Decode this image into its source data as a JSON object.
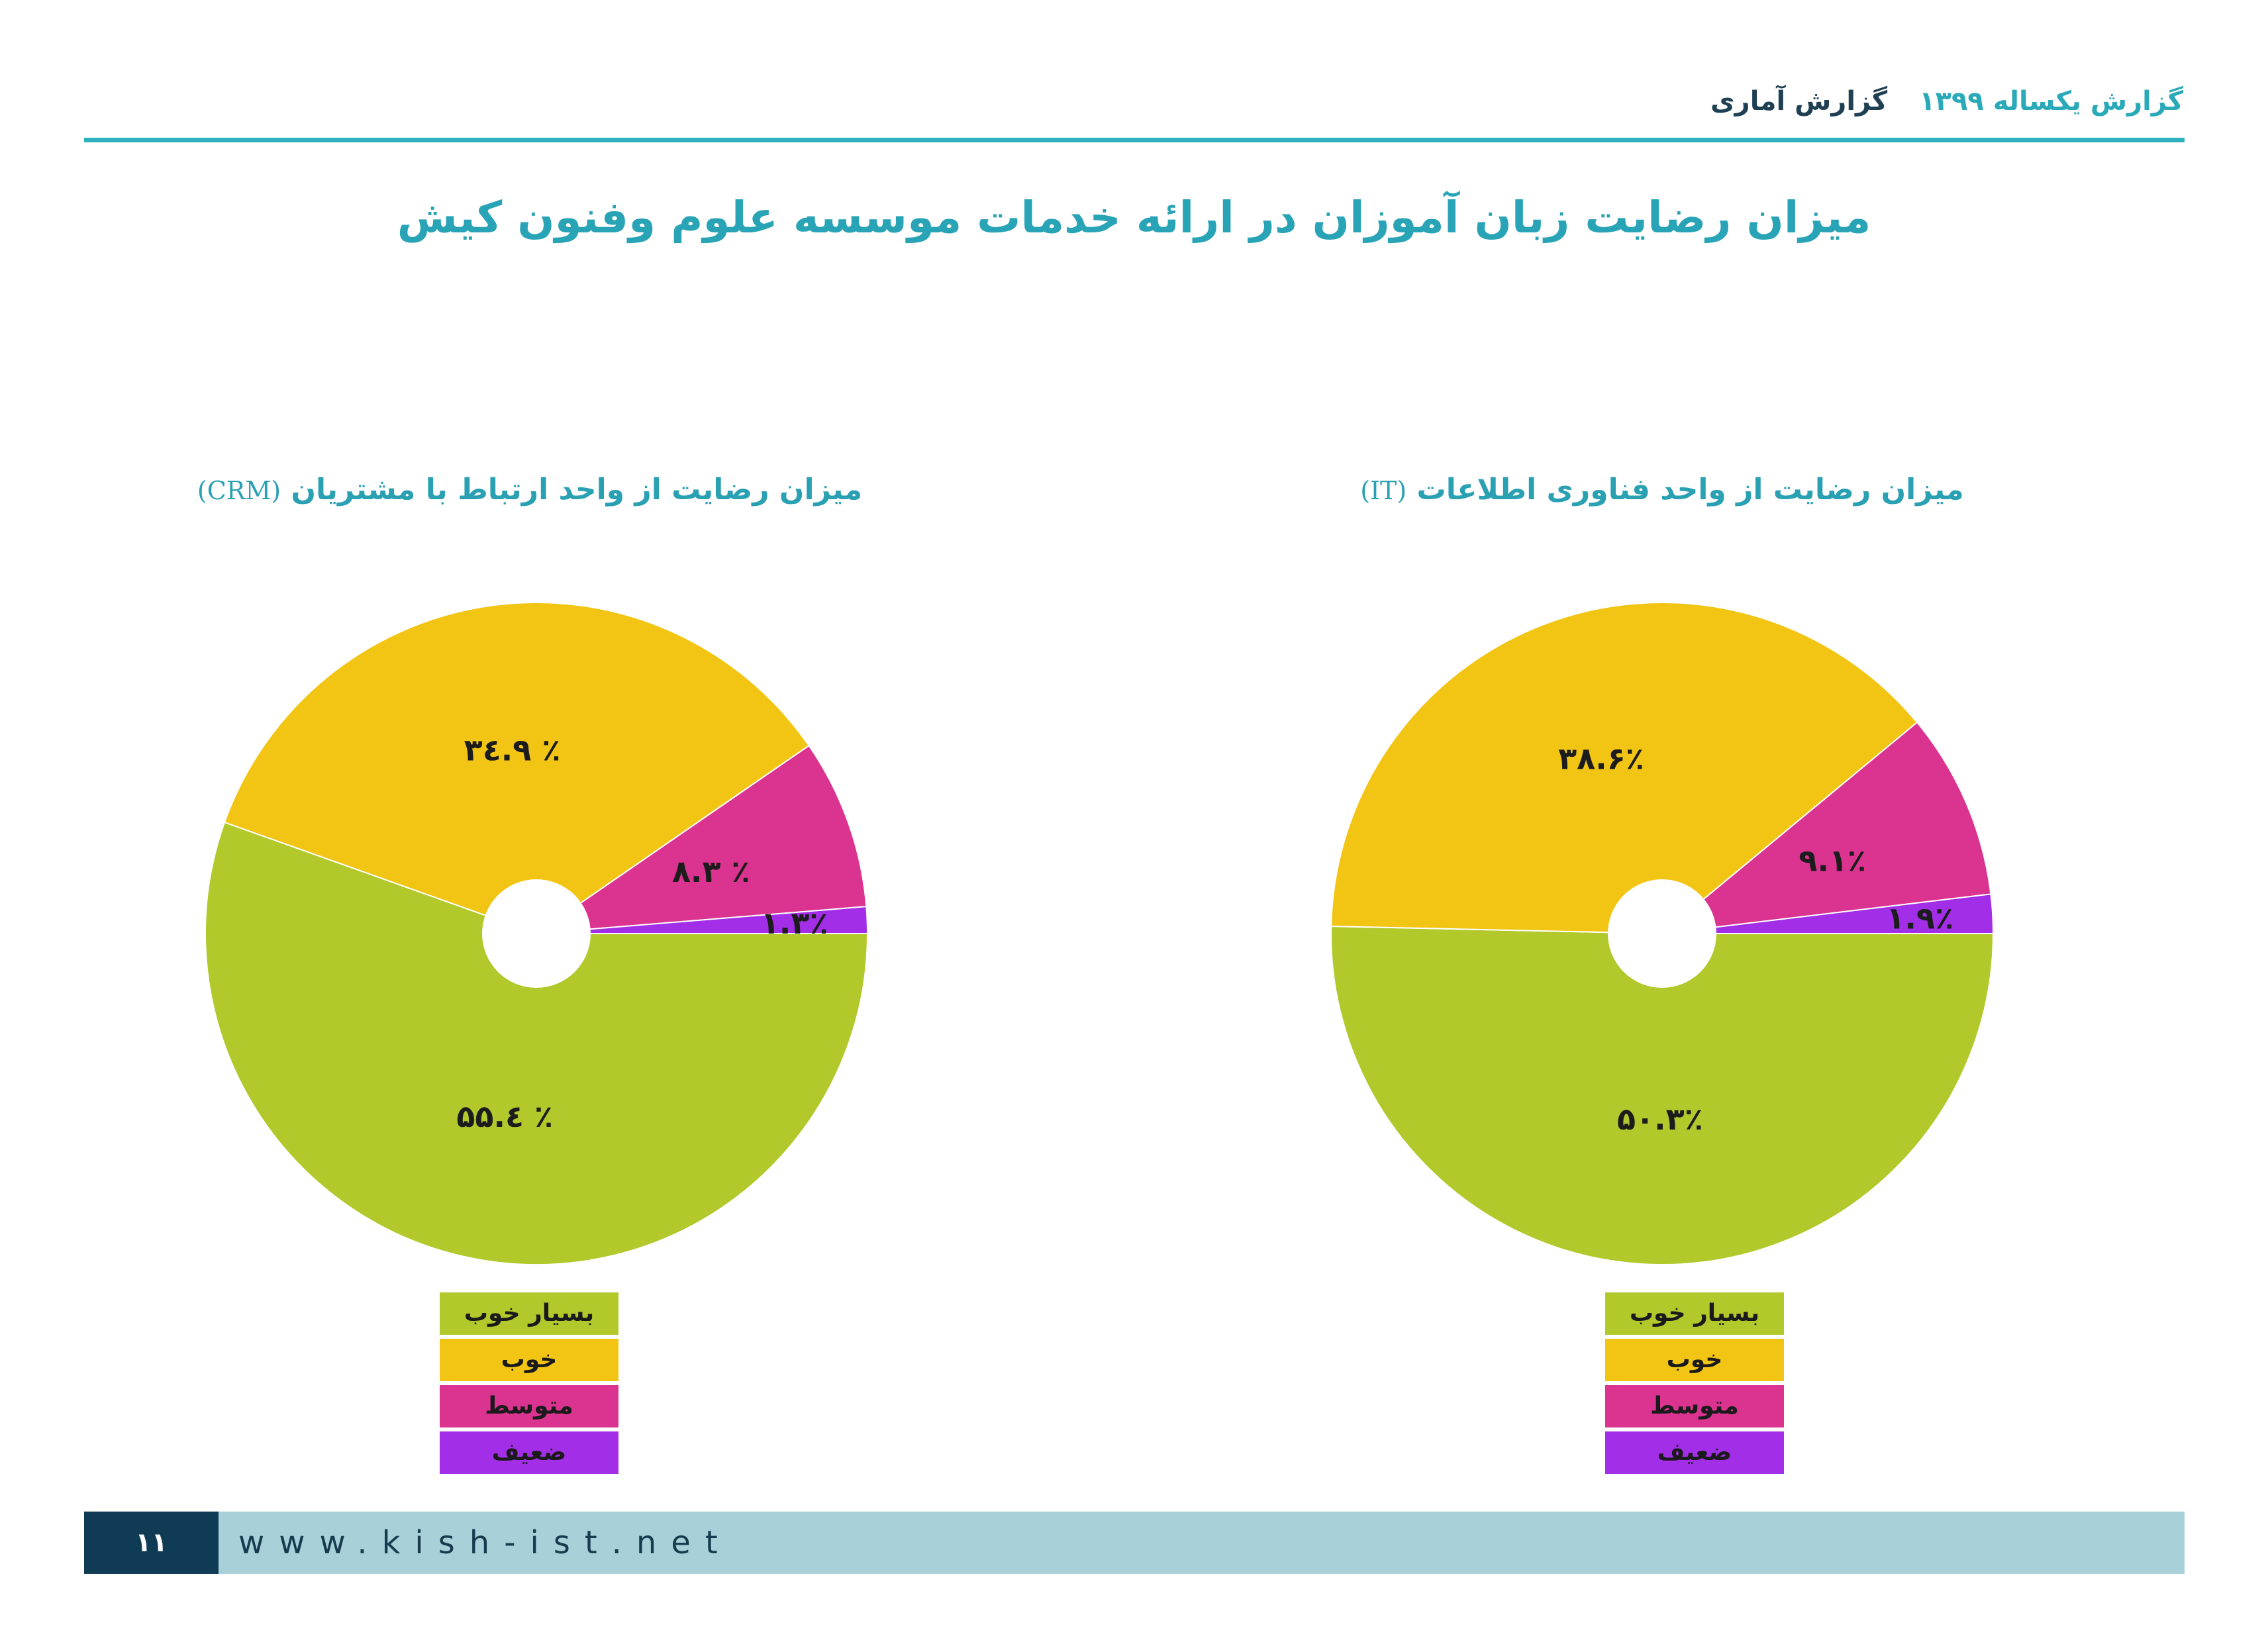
{
  "header": {
    "report_label": "گزارش یکساله ۱۳۹۹",
    "section_label": "گزارش آماری"
  },
  "main_title": "میزان رضایت زبان آموزان در ارائه خدمات  موسسه علوم وفنون کیش",
  "footer": {
    "page_number": "۱۱",
    "url": "www.kish-ist.net"
  },
  "colors": {
    "very_good": "#b2c82b",
    "good": "#f2c515",
    "medium": "#da3390",
    "weak": "#a22ee8"
  },
  "chart_data": [
    {
      "type": "pie",
      "title": "میزان رضایت از واحد ارتباط با مشتریان",
      "title_abbr": "(CRM)",
      "categories": [
        "بسیار خوب",
        "خوب",
        "متوسط",
        "ضعیف"
      ],
      "values": [
        55.4,
        34.9,
        8.3,
        1.3
      ],
      "labels": [
        "۵۵.٤ ٪",
        "۳٤.۹ ٪",
        "۸.۳ ٪",
        "۱.۳٪"
      ],
      "legend_position": "bottom"
    },
    {
      "type": "pie",
      "title": "میزان رضایت از واحد فناوری اطلاعات",
      "title_abbr": "(IT)",
      "categories": [
        "بسیار خوب",
        "خوب",
        "متوسط",
        "ضعیف"
      ],
      "values": [
        50.3,
        38.6,
        9.1,
        1.9
      ],
      "labels": [
        "۵۰.۳٪",
        "۳۸.۶٪",
        "۹.۱٪",
        "۱.۹٪"
      ],
      "legend_position": "bottom"
    }
  ]
}
